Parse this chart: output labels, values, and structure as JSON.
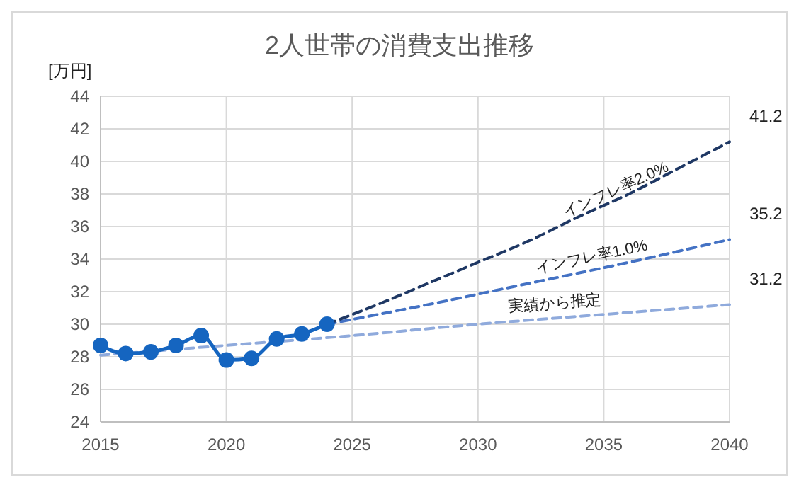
{
  "chart_data": {
    "type": "line",
    "title": "2人世帯の消費支出推移",
    "ylabel": "[万円]",
    "xlim": [
      2015,
      2040
    ],
    "xticks": [
      2015,
      2020,
      2025,
      2030,
      2035,
      2040
    ],
    "ylim": [
      24,
      44
    ],
    "yticks": [
      24,
      26,
      28,
      30,
      32,
      34,
      36,
      38,
      40,
      42,
      44
    ],
    "grid": true,
    "series": [
      {
        "color": "#8faadc",
        "line_style": "dashed",
        "marker": "none",
        "x": [
          2015,
          2020,
          2025,
          2030,
          2035,
          2040
        ],
        "values": [
          28.1,
          28.7,
          29.3,
          30.0,
          30.6,
          31.2
        ],
        "name": "実績から推定",
        "value_labels": [
          null,
          null,
          null,
          null,
          null,
          "31.2"
        ]
      },
      {
        "color": "#4472c4",
        "line_style": "dashed",
        "marker": "none",
        "x": [
          2024,
          2028,
          2032,
          2036,
          2040
        ],
        "values": [
          30.0,
          31.2,
          32.5,
          33.8,
          35.2
        ],
        "name": "インフレ率1.0%",
        "value_labels": [
          null,
          null,
          null,
          null,
          "35.2"
        ]
      },
      {
        "color": "#1f3864",
        "line_style": "dashed",
        "marker": "none",
        "x": [
          2024,
          2026,
          2028,
          2030,
          2032,
          2034,
          2036,
          2038,
          2040
        ],
        "values": [
          30.0,
          31.2,
          32.5,
          33.8,
          35.1,
          36.6,
          38.0,
          39.6,
          41.2
        ],
        "name": "インフレ率2.0%",
        "value_labels": [
          null,
          null,
          null,
          null,
          null,
          null,
          null,
          null,
          "41.2"
        ]
      },
      {
        "color": "#1565c0",
        "line_style": "solid",
        "marker": "circle",
        "x": [
          2015,
          2016,
          2017,
          2018,
          2019,
          2020,
          2021,
          2022,
          2023,
          2024
        ],
        "values": [
          28.7,
          28.2,
          28.3,
          28.7,
          29.3,
          27.8,
          27.9,
          29.1,
          29.4,
          30.0
        ]
      }
    ]
  }
}
